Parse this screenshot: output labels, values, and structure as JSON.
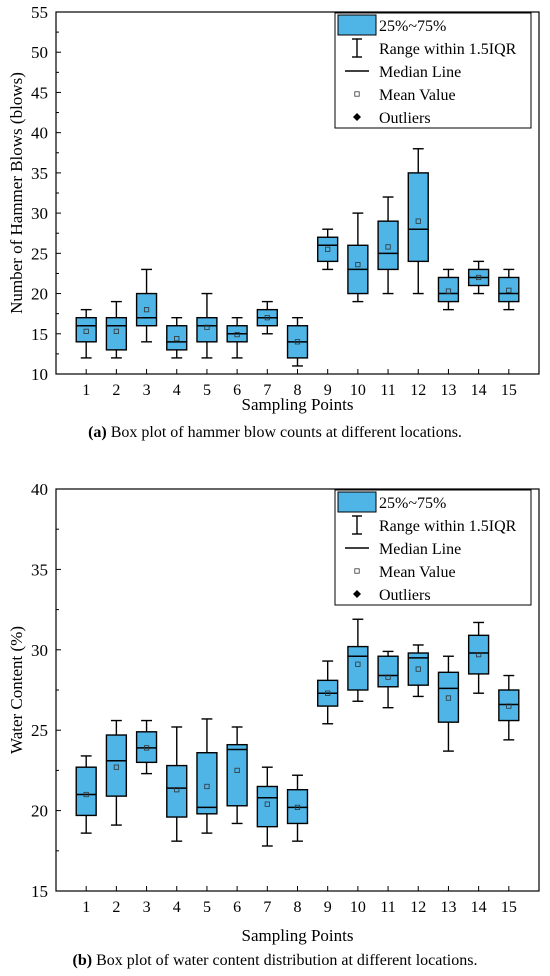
{
  "chart_data": [
    {
      "type": "box",
      "xlabel": "Sampling Points",
      "ylabel": "Number of Hammer Blows (blows)",
      "caption_label": "(a)",
      "caption_text": " Box plot of hammer blow counts at different locations.",
      "ylim": [
        10,
        55
      ],
      "yticks": [
        "10",
        "15",
        "20",
        "25",
        "30",
        "35",
        "40",
        "45",
        "50",
        "55"
      ],
      "categories": [
        "1",
        "2",
        "3",
        "4",
        "5",
        "6",
        "7",
        "8",
        "9",
        "10",
        "11",
        "12",
        "13",
        "14",
        "15"
      ],
      "legend": {
        "position": "top-right",
        "box": "25%~75%",
        "range": "Range within 1.5IQR",
        "median": "Median Line",
        "mean": "Mean Value",
        "outliers": "Outliers"
      },
      "fill_color": "#4fb4e6",
      "boxes": [
        {
          "min": 12,
          "q1": 14,
          "median": 16,
          "q3": 17,
          "max": 18,
          "mean": 15.3
        },
        {
          "min": 12,
          "q1": 13,
          "median": 16,
          "q3": 17,
          "max": 19,
          "mean": 15.3
        },
        {
          "min": 14,
          "q1": 16,
          "median": 17,
          "q3": 20,
          "max": 23,
          "mean": 18
        },
        {
          "min": 12,
          "q1": 13,
          "median": 14,
          "q3": 16,
          "max": 17,
          "mean": 14.4
        },
        {
          "min": 12,
          "q1": 14,
          "median": 16,
          "q3": 17,
          "max": 20,
          "mean": 15.8
        },
        {
          "min": 12,
          "q1": 14,
          "median": 15,
          "q3": 16,
          "max": 17,
          "mean": 14.9
        },
        {
          "min": 15,
          "q1": 16,
          "median": 17,
          "q3": 18,
          "max": 19,
          "mean": 17
        },
        {
          "min": 11,
          "q1": 12,
          "median": 14,
          "q3": 16,
          "max": 17,
          "mean": 14
        },
        {
          "min": 23,
          "q1": 24,
          "median": 26,
          "q3": 27,
          "max": 28,
          "mean": 25.5
        },
        {
          "min": 19,
          "q1": 20,
          "median": 23,
          "q3": 26,
          "max": 30,
          "mean": 23.6
        },
        {
          "min": 20,
          "q1": 23,
          "median": 25,
          "q3": 29,
          "max": 32,
          "mean": 25.8
        },
        {
          "min": 20,
          "q1": 24,
          "median": 28,
          "q3": 35,
          "max": 38,
          "mean": 29
        },
        {
          "min": 18,
          "q1": 19,
          "median": 20,
          "q3": 22,
          "max": 23,
          "mean": 20.3
        },
        {
          "min": 20,
          "q1": 21,
          "median": 22,
          "q3": 23,
          "max": 24,
          "mean": 22
        },
        {
          "min": 18,
          "q1": 19,
          "median": 20,
          "q3": 22,
          "max": 23,
          "mean": 20.4
        }
      ]
    },
    {
      "type": "box",
      "xlabel": "Sampling Points",
      "ylabel": "Water Content (%)",
      "caption_label": "(b)",
      "caption_text": " Box plot of water content distribution at different locations.",
      "ylim": [
        15,
        40
      ],
      "yticks": [
        "15",
        "20",
        "25",
        "30",
        "35",
        "40"
      ],
      "categories": [
        "1",
        "2",
        "3",
        "4",
        "5",
        "6",
        "7",
        "8",
        "9",
        "10",
        "11",
        "12",
        "13",
        "14",
        "15"
      ],
      "legend": {
        "position": "top-right",
        "box": "25%~75%",
        "range": "Range within 1.5IQR",
        "median": "Median Line",
        "mean": "Mean Value",
        "outliers": "Outliers"
      },
      "fill_color": "#4fb4e6",
      "boxes": [
        {
          "min": 18.6,
          "q1": 19.7,
          "median": 21.0,
          "q3": 22.7,
          "max": 23.4,
          "mean": 21.0
        },
        {
          "min": 19.1,
          "q1": 20.9,
          "median": 23.1,
          "q3": 24.7,
          "max": 25.6,
          "mean": 22.7
        },
        {
          "min": 22.3,
          "q1": 23.0,
          "median": 23.9,
          "q3": 24.9,
          "max": 25.6,
          "mean": 23.9
        },
        {
          "min": 18.1,
          "q1": 19.6,
          "median": 21.4,
          "q3": 22.8,
          "max": 25.2,
          "mean": 21.3
        },
        {
          "min": 18.6,
          "q1": 19.8,
          "median": 20.2,
          "q3": 23.6,
          "max": 25.7,
          "mean": 21.5
        },
        {
          "min": 19.2,
          "q1": 20.3,
          "median": 23.8,
          "q3": 24.1,
          "max": 25.2,
          "mean": 22.5
        },
        {
          "min": 17.8,
          "q1": 19.0,
          "median": 20.8,
          "q3": 21.5,
          "max": 22.7,
          "mean": 20.4
        },
        {
          "min": 18.1,
          "q1": 19.2,
          "median": 20.2,
          "q3": 21.3,
          "max": 22.2,
          "mean": 20.2
        },
        {
          "min": 25.4,
          "q1": 26.5,
          "median": 27.3,
          "q3": 28.1,
          "max": 29.3,
          "mean": 27.3
        },
        {
          "min": 26.8,
          "q1": 27.5,
          "median": 29.6,
          "q3": 30.2,
          "max": 31.9,
          "mean": 29.1
        },
        {
          "min": 26.4,
          "q1": 27.7,
          "median": 28.4,
          "q3": 29.6,
          "max": 29.9,
          "mean": 28.3
        },
        {
          "min": 27.1,
          "q1": 27.8,
          "median": 29.5,
          "q3": 29.8,
          "max": 30.3,
          "mean": 28.8
        },
        {
          "min": 23.7,
          "q1": 25.5,
          "median": 27.6,
          "q3": 28.6,
          "max": 29.6,
          "mean": 27.0
        },
        {
          "min": 27.3,
          "q1": 28.5,
          "median": 29.8,
          "q3": 30.9,
          "max": 31.7,
          "mean": 29.7
        },
        {
          "min": 24.4,
          "q1": 25.6,
          "median": 26.6,
          "q3": 27.5,
          "max": 28.4,
          "mean": 26.5
        }
      ]
    }
  ]
}
